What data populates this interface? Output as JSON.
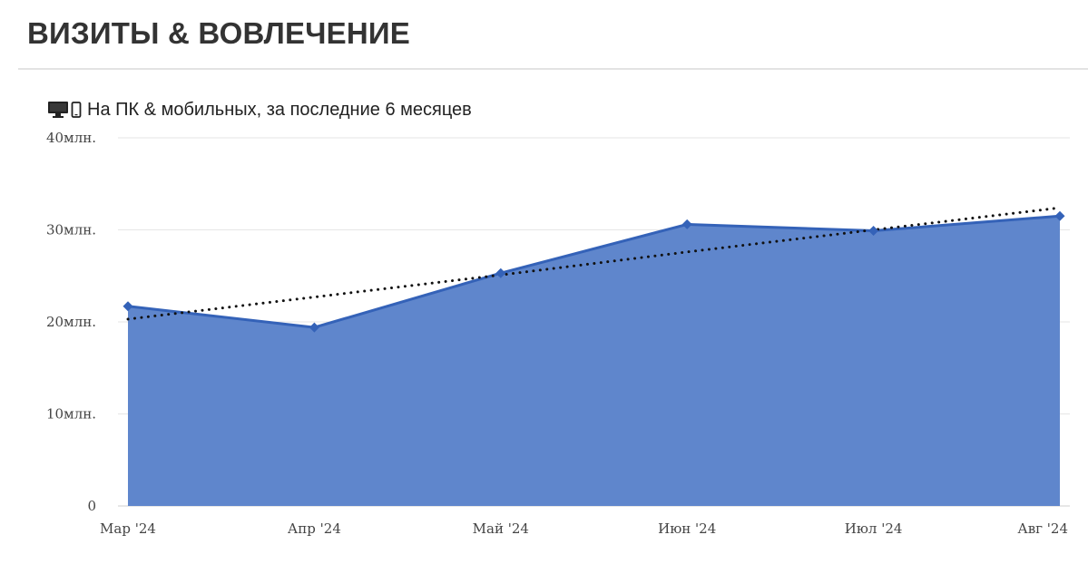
{
  "header": {
    "title": "ВИЗИТЫ & ВОВЛЕЧЕНИЕ"
  },
  "subtitle": {
    "text": "На ПК & мобильных, за последние 6 месяцев",
    "icons": [
      "desktop-icon",
      "mobile-icon"
    ]
  },
  "chart_data": {
    "type": "area",
    "categories": [
      "Мар '24",
      "Апр '24",
      "Май '24",
      "Июн '24",
      "Июл '24",
      "Авг '24"
    ],
    "series": [
      {
        "values": [
          21700000,
          19400000,
          25300000,
          30600000,
          29900000,
          31500000
        ],
        "color": "#5f86cc",
        "line_color": "#3462b8"
      }
    ],
    "trendline": {
      "style": "dotted",
      "color": "#111111",
      "values": [
        20300000,
        22700000,
        25100000,
        27600000,
        30000000,
        32400000
      ]
    },
    "y_ticks": [
      0,
      10000000,
      20000000,
      30000000,
      40000000
    ],
    "y_tick_labels": [
      "0",
      "10млн.",
      "20млн.",
      "30млн.",
      "40млн."
    ],
    "ylim": [
      0,
      40000000
    ],
    "grid": true,
    "legend": "none"
  }
}
